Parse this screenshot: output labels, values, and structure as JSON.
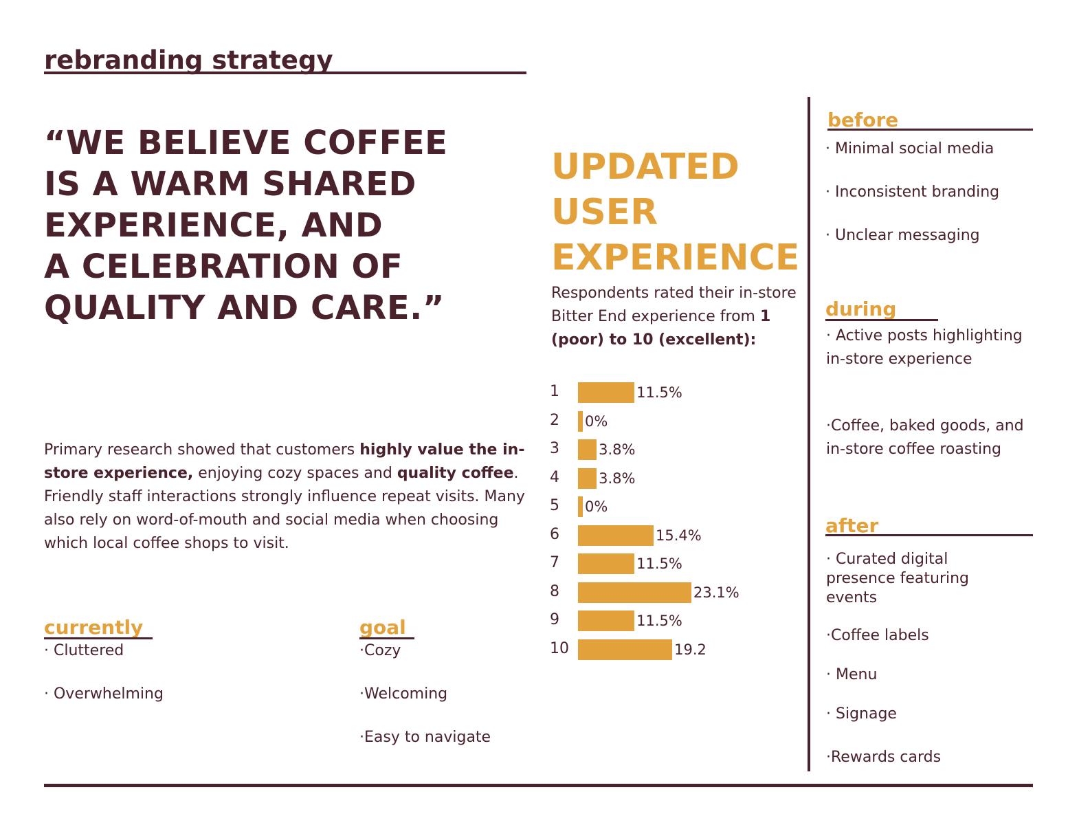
{
  "header": {
    "title": "rebranding strategy"
  },
  "quote": {
    "lines": [
      "“WE BELIEVE COFFEE",
      "IS A WARM SHARED",
      "EXPERIENCE, AND",
      "A CELEBRATION OF",
      "QUALITY AND CARE.”"
    ]
  },
  "research": {
    "part1": "Primary research showed that customers ",
    "bold1": "highly value the in-store experience,",
    "part2": " enjoying cozy spaces and ",
    "bold2": "quality coffee",
    "part3": ". Friendly staff interactions strongly influence repeat visits. Many also rely on word-of-mouth and social media when choosing which local coffee shops to visit."
  },
  "currently": {
    "heading": "currently",
    "items": [
      "· Cluttered",
      "· Overwhelming"
    ]
  },
  "goal": {
    "heading": "goal",
    "items": [
      "·Cozy",
      "·Welcoming",
      "·Easy to navigate"
    ]
  },
  "chart_data": {
    "type": "bar",
    "orientation": "horizontal",
    "title": "UPDATED USER EXPERIENCE",
    "title_lines": [
      "UPDATED",
      "USER",
      "EXPERIENCE"
    ],
    "subtitle_plain": "Respondents rated their in-store Bitter End experience from ",
    "subtitle_bold": "1 (poor) to 10 (excellent):",
    "categories": [
      "1",
      "2",
      "3",
      "4",
      "5",
      "6",
      "7",
      "8",
      "9",
      "10"
    ],
    "values": [
      11.5,
      0,
      3.8,
      3.8,
      0,
      15.4,
      11.5,
      23.1,
      11.5,
      19.2
    ],
    "labels": [
      "11.5%",
      "0%",
      "3.8%",
      "3.8%",
      "0%",
      "15.4%",
      "11.5%",
      "23.1%",
      "11.5%",
      "19.2"
    ],
    "xlim": [
      0,
      23.1
    ],
    "grid": false,
    "bar_color": "#e3a13c"
  },
  "before": {
    "heading": "before",
    "items": [
      "· Minimal social media",
      "· Inconsistent branding",
      "· Unclear messaging"
    ]
  },
  "during": {
    "heading": "during",
    "items": [
      "· Active posts highlighting in-store experience",
      "·Coffee, baked goods, and in-store coffee roasting"
    ]
  },
  "after": {
    "heading": "after",
    "items": [
      "· Curated digital presence featuring events",
      "·Coffee labels",
      "· Menu",
      "· Signage",
      "·Rewards cards"
    ]
  },
  "colors": {
    "brown": "#4a222b",
    "gold": "#e3a13c"
  }
}
